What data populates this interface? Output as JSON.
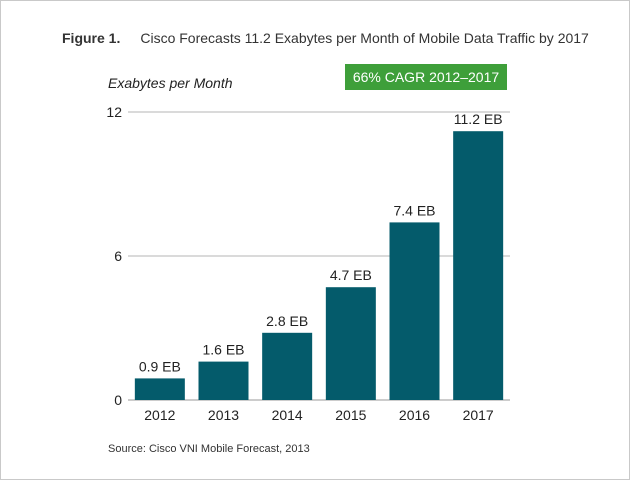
{
  "figure": {
    "number": "Figure 1.",
    "title": "Cisco Forecasts 11.2 Exabytes per Month of Mobile Data Traffic by 2017"
  },
  "badge": {
    "text": "66% CAGR 2012–2017",
    "color": "#3e9f3a"
  },
  "source": "Source: Cisco VNI Mobile Forecast, 2013",
  "chart_data": {
    "type": "bar",
    "title": "Cisco Forecasts 11.2 Exabytes per Month of Mobile Data Traffic by 2017",
    "ylabel": "Exabytes per Month",
    "xlabel": "",
    "categories": [
      "2012",
      "2013",
      "2014",
      "2015",
      "2016",
      "2017"
    ],
    "values": [
      0.9,
      1.6,
      2.8,
      4.7,
      7.4,
      11.2
    ],
    "data_labels": [
      "0.9 EB",
      "1.6 EB",
      "2.8 EB",
      "4.7 EB",
      "7.4 EB",
      "11.2 EB"
    ],
    "yticks": [
      0,
      6,
      12
    ],
    "ylim": [
      0,
      12
    ],
    "grid": true,
    "bar_color": "#045b6b",
    "annotation": "66% CAGR 2012–2017"
  }
}
